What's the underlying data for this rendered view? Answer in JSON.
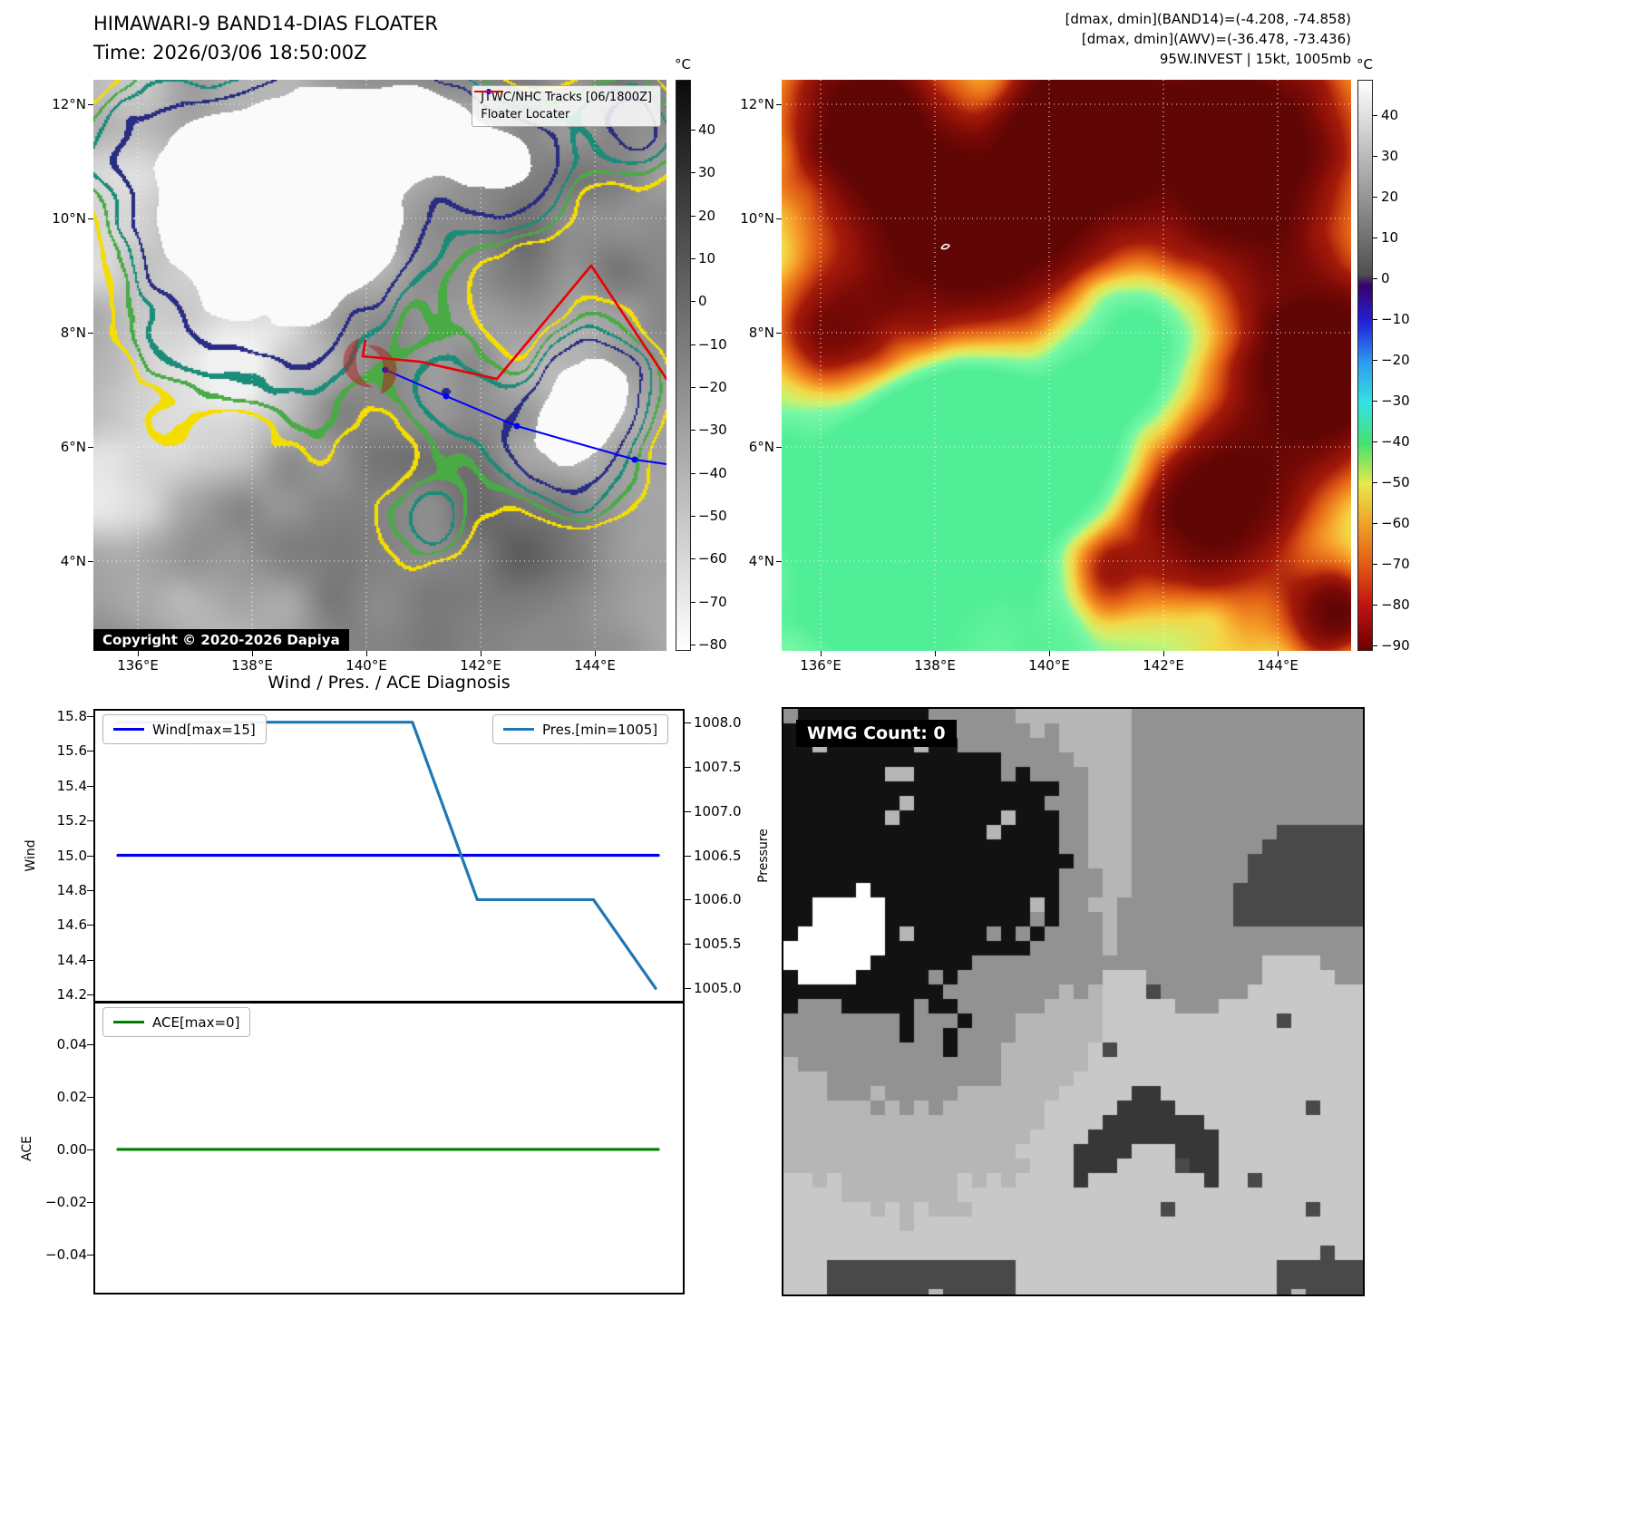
{
  "panels": {
    "band14": {
      "title": "HIMAWARI-9 BAND14-DIAS FLOATER",
      "subtitle": "Time: 2026/03/06 18:50:00Z",
      "copyright": "Copyright © 2020-2026 Dapiya",
      "legend": {
        "tracks": "JTWC/NHC Tracks [06/1800Z]",
        "floater": "Floater Locater"
      },
      "track_color": "#0000ff",
      "floater_color": "#ec0000",
      "colorbar_unit": "°C",
      "colorbar_ticks": [
        "40",
        "30",
        "20",
        "10",
        "0",
        "−10",
        "−20",
        "−30",
        "−40",
        "−50",
        "−60",
        "−70",
        "−80"
      ],
      "x_ticks": [
        "136°E",
        "138°E",
        "140°E",
        "142°E",
        "144°E"
      ],
      "y_ticks": [
        "12°N",
        "10°N",
        "8°N",
        "6°N",
        "4°N"
      ]
    },
    "awv": {
      "info_line1": "[dmax, dmin](BAND14)=(-4.208, -74.858)",
      "info_line2": "[dmax, dmin](AWV)=(-36.478, -73.436)",
      "info_line3": "95W.INVEST | 15kt, 1005mb",
      "colorbar_unit": "°C",
      "colorbar_ticks": [
        "40",
        "30",
        "20",
        "10",
        "0",
        "−10",
        "−20",
        "−30",
        "−40",
        "−50",
        "−60",
        "−70",
        "−80",
        "−90"
      ],
      "x_ticks": [
        "136°E",
        "138°E",
        "140°E",
        "142°E",
        "144°E"
      ],
      "y_ticks": [
        "12°N",
        "10°N",
        "8°N",
        "6°N",
        "4°N"
      ]
    },
    "wmg": {
      "label": "WMG Count: 0"
    }
  },
  "chart_data": [
    {
      "type": "line",
      "name": "wind-pressure",
      "title": "Wind / Pres. / ACE Diagnosis",
      "series": [
        {
          "name": "Wind[max=15]",
          "color": "#0000ee",
          "axis": "left",
          "x": [
            0,
            1
          ],
          "y": [
            15,
            15
          ]
        },
        {
          "name": "Pres.[min=1005]",
          "color": "#1f77b4",
          "axis": "right",
          "x": [
            0,
            0.545,
            0.665,
            0.88,
            0.995
          ],
          "y": [
            1008,
            1008,
            1006,
            1006,
            1005
          ]
        }
      ],
      "left_axis": {
        "label": "Wind",
        "lim": [
          14.16,
          15.84
        ],
        "ticks": [
          15.8,
          15.6,
          15.4,
          15.2,
          15.0,
          14.8,
          14.6,
          14.4,
          14.2
        ],
        "tick_labels": [
          "15.8",
          "15.6",
          "15.4",
          "15.2",
          "15.0",
          "14.8",
          "14.6",
          "14.4",
          "14.2"
        ]
      },
      "right_axis": {
        "label": "Pressure",
        "lim": [
          1004.85,
          1008.15
        ],
        "ticks": [
          1008.0,
          1007.5,
          1007.0,
          1006.5,
          1006.0,
          1005.5,
          1005.0
        ],
        "tick_labels": [
          "1008.0",
          "1007.5",
          "1007.0",
          "1006.5",
          "1006.0",
          "1005.5",
          "1005.0"
        ]
      },
      "x_range": [
        0,
        1
      ],
      "grid": false,
      "legend_position": "upper-left and upper-right"
    },
    {
      "type": "line",
      "name": "ace",
      "series": [
        {
          "name": "ACE[max=0]",
          "color": "#008000",
          "axis": "left",
          "x": [
            0,
            1
          ],
          "y": [
            0,
            0
          ]
        }
      ],
      "left_axis": {
        "label": "ACE",
        "lim": [
          -0.055,
          0.056
        ],
        "ticks": [
          0.04,
          0.02,
          0.0,
          -0.02,
          -0.04
        ],
        "tick_labels": [
          "0.04",
          "0.02",
          "0.00",
          "−0.02",
          "−0.04"
        ]
      },
      "x_range": [
        0,
        1
      ],
      "grid": false,
      "legend_position": "upper-left"
    }
  ]
}
